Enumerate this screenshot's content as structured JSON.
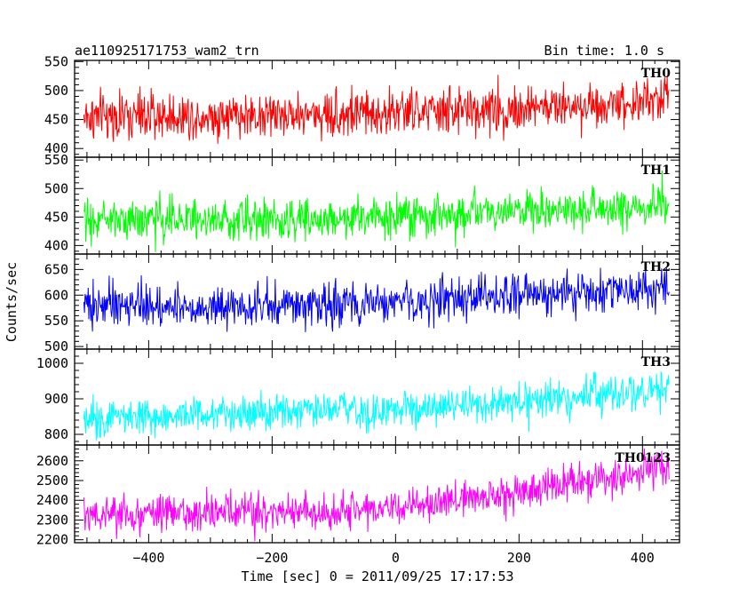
{
  "header": {
    "title": "ae110925171753_wam2_trn",
    "bin_time": "Bin time: 1.0 s"
  },
  "chart_data": {
    "type": "line",
    "xlabel": "Time [sec] 0 = 2011/09/25 17:17:53",
    "ylabel": "Counts/sec",
    "xlim": [
      -520,
      460
    ],
    "xticks": [
      -400,
      -200,
      0,
      200,
      400
    ],
    "x_range": [
      -505,
      443
    ],
    "bin_time": 1.0,
    "panels": [
      {
        "name": "TH0",
        "color": "#ff0000",
        "ylim": [
          385,
          552
        ],
        "yticks": [
          400,
          450,
          500,
          550
        ],
        "trend": [
          [
            -505,
            455
          ],
          [
            -200,
            458
          ],
          [
            0,
            462
          ],
          [
            200,
            468
          ],
          [
            443,
            485
          ]
        ],
        "noise": 24
      },
      {
        "name": "TH1",
        "color": "#00ff00",
        "ylim": [
          385,
          555
        ],
        "yticks": [
          400,
          450,
          500,
          550
        ],
        "trend": [
          [
            -505,
            445
          ],
          [
            -200,
            447
          ],
          [
            0,
            450
          ],
          [
            200,
            458
          ],
          [
            443,
            470
          ]
        ],
        "noise": 21
      },
      {
        "name": "TH2",
        "color": "#0000ff",
        "ylim": [
          495,
          680
        ],
        "yticks": [
          500,
          550,
          600,
          650
        ],
        "trend": [
          [
            -505,
            580
          ],
          [
            -200,
            580
          ],
          [
            0,
            585
          ],
          [
            200,
            597
          ],
          [
            443,
            612
          ]
        ],
        "noise": 24
      },
      {
        "name": "TH3",
        "color": "#00ffff",
        "ylim": [
          770,
          1040
        ],
        "yticks": [
          800,
          900,
          1000
        ],
        "trend": [
          [
            -505,
            850
          ],
          [
            -200,
            858
          ],
          [
            0,
            868
          ],
          [
            200,
            890
          ],
          [
            443,
            925
          ]
        ],
        "noise": 30
      },
      {
        "name": "TH0123",
        "color": "#ff00ff",
        "ylim": [
          2185,
          2680
        ],
        "yticks": [
          2200,
          2300,
          2400,
          2500,
          2600
        ],
        "trend": [
          [
            -505,
            2325
          ],
          [
            -200,
            2335
          ],
          [
            0,
            2360
          ],
          [
            200,
            2440
          ],
          [
            443,
            2570
          ]
        ],
        "noise": 55
      }
    ]
  }
}
